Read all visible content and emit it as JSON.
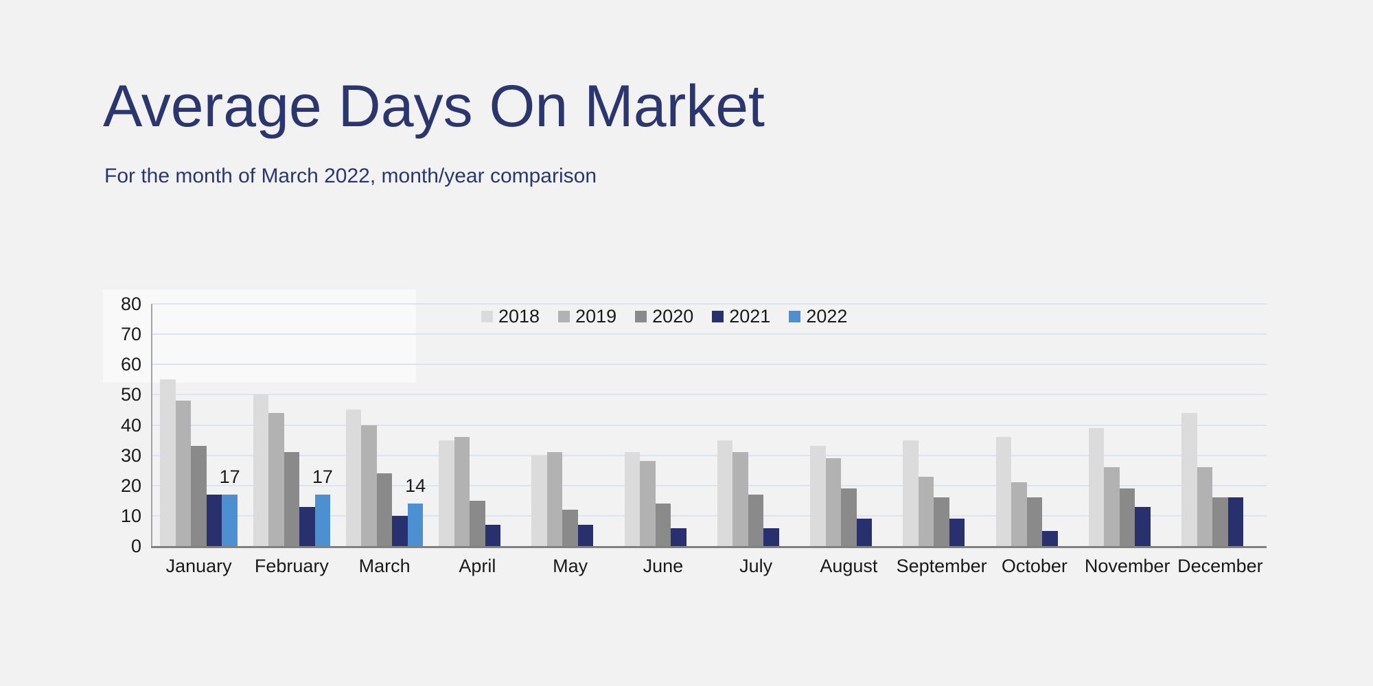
{
  "header": {
    "title": "Average Days On Market",
    "subtitle": "For the month of March 2022, month/year comparison"
  },
  "colors": {
    "background": "#f2f2f2",
    "title_text": "#2b356e",
    "subtitle_text": "#2b356e",
    "axis_text": "#1a1a1a",
    "gridline": "#dde3ee",
    "y_axis_line": "#a3a3a3",
    "x_axis_line": "#808080",
    "highlight_panel": "rgba(255,255,255,0.55)"
  },
  "chart_data": {
    "type": "bar",
    "title": "Average Days On Market",
    "subtitle": "For the month of March 2022, month/year comparison",
    "categories": [
      "January",
      "February",
      "March",
      "April",
      "May",
      "June",
      "July",
      "August",
      "September",
      "October",
      "November",
      "December"
    ],
    "series": [
      {
        "name": "2018",
        "color": "#dbdbdb",
        "values": [
          55,
          50,
          45,
          35,
          30,
          31,
          35,
          33,
          35,
          36,
          39,
          44
        ],
        "show_data_labels": false
      },
      {
        "name": "2019",
        "color": "#b2b2b2",
        "values": [
          48,
          44,
          40,
          36,
          31,
          28,
          31,
          29,
          23,
          21,
          26,
          26
        ],
        "show_data_labels": false
      },
      {
        "name": "2020",
        "color": "#8a8a8a",
        "values": [
          33,
          31,
          24,
          15,
          12,
          14,
          17,
          19,
          16,
          16,
          19,
          16
        ],
        "show_data_labels": false
      },
      {
        "name": "2021",
        "color": "#28316e",
        "values": [
          17,
          13,
          10,
          7,
          7,
          6,
          6,
          9,
          9,
          5,
          13,
          16
        ],
        "show_data_labels": false
      },
      {
        "name": "2022",
        "color": "#4d90d2",
        "values": [
          17,
          17,
          14,
          null,
          null,
          null,
          null,
          null,
          null,
          null,
          null,
          null
        ],
        "show_data_labels": true
      }
    ],
    "ylim": [
      0,
      80
    ],
    "ytick_step": 10,
    "grid": true,
    "legend_position": "top-inside",
    "xlabel": "",
    "ylabel": ""
  }
}
